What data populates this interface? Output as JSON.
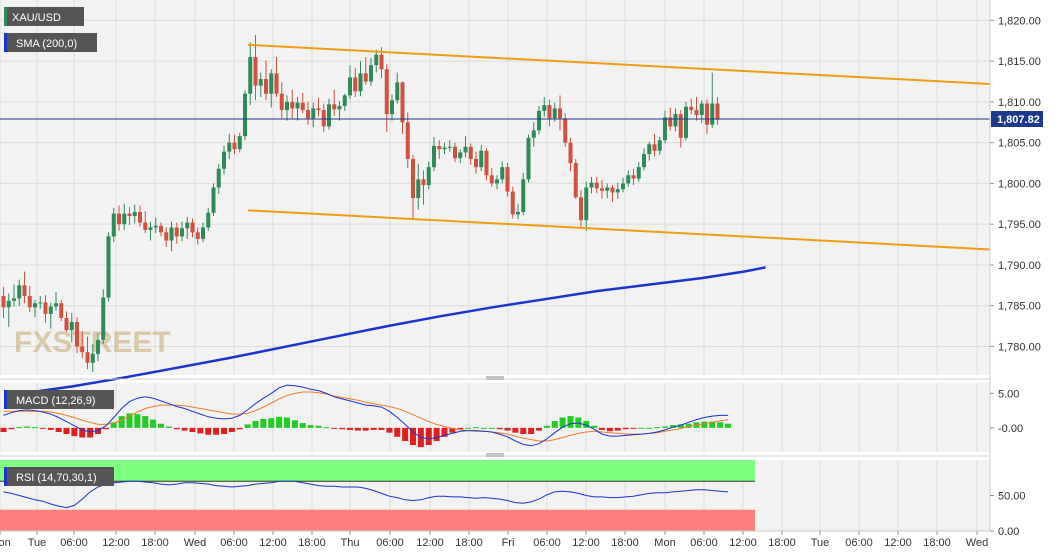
{
  "colors": {
    "panel_bg": "#f2f2f2",
    "grid": "#dcdcdc",
    "bull": "#2e8b57",
    "bear": "#d1503f",
    "channel": "#f39c12",
    "sma": "#1a35c9",
    "macd": "#1a35c9",
    "signal": "#f07b2c",
    "hist_pos": "#22cc22",
    "hist_neg": "#e02020",
    "rsi": "#1a35c9",
    "ob_zone": "#7fff7f",
    "os_zone": "#ff7f7f",
    "tag_bg": "#555555",
    "price_line": "#1b3a8c"
  },
  "price_panel": {
    "symbol_label": "XAU/USD",
    "sma_label": "SMA (200,0)",
    "watermark": "FXSTREET",
    "price_tag": "1,807.82",
    "y_ticks": [
      "1,820.00",
      "1,815.00",
      "1,810.00",
      "1,805.00",
      "1,800.00",
      "1,795.00",
      "1,790.00",
      "1,785.00",
      "1,780.00"
    ]
  },
  "macd_panel": {
    "label": "MACD (12,26,9)",
    "y_ticks": [
      "5.00",
      "-0.00"
    ]
  },
  "rsi_panel": {
    "label": "RSI (14,70,30,1)",
    "y_ticks": [
      "50.00",
      "0.00"
    ]
  },
  "time_axis": {
    "labels": [
      "Mon",
      "Tue",
      "06:00",
      "12:00",
      "18:00",
      "Wed",
      "06:00",
      "12:00",
      "18:00",
      "Thu",
      "06:00",
      "12:00",
      "18:00",
      "Fri",
      "06:00",
      "12:00",
      "18:00",
      "Mon",
      "06:00",
      "12:00",
      "18:00",
      "Tue",
      "06:00",
      "12:00",
      "18:00",
      "Wed"
    ]
  },
  "chart_data": {
    "type": "candlestick",
    "symbol": "XAU/USD",
    "timeframe_note": "hourly candles, Mon through Tue",
    "price_range": [
      1776.5,
      1822.5
    ],
    "last_price": 1807.82,
    "candles": [
      [
        1786.2,
        1787.3,
        1783.5,
        1784.8
      ],
      [
        1784.8,
        1786.5,
        1782.4,
        1785.6
      ],
      [
        1785.6,
        1787.6,
        1784.9,
        1785.9
      ],
      [
        1785.9,
        1788.2,
        1785.0,
        1787.5
      ],
      [
        1787.5,
        1789.2,
        1785.3,
        1786.2
      ],
      [
        1786.2,
        1787.4,
        1784.2,
        1784.8
      ],
      [
        1784.8,
        1785.7,
        1783.6,
        1785.3
      ],
      [
        1785.3,
        1786.2,
        1784.6,
        1785.4
      ],
      [
        1785.4,
        1786.3,
        1782.9,
        1784.0
      ],
      [
        1784.0,
        1785.4,
        1782.2,
        1784.9
      ],
      [
        1784.9,
        1786.7,
        1784.4,
        1785.3
      ],
      [
        1785.3,
        1785.7,
        1783.1,
        1783.5
      ],
      [
        1783.5,
        1784.3,
        1781.8,
        1782.0
      ],
      [
        1782.0,
        1784.1,
        1780.5,
        1783.0
      ],
      [
        1783.0,
        1783.6,
        1779.2,
        1780.0
      ],
      [
        1780.0,
        1781.9,
        1778.6,
        1779.3
      ],
      [
        1779.3,
        1781.2,
        1777.2,
        1778.0
      ],
      [
        1778.0,
        1780.3,
        1776.9,
        1779.1
      ],
      [
        1779.1,
        1781.6,
        1778.2,
        1780.8
      ],
      [
        1780.8,
        1787.0,
        1780.3,
        1786.0
      ],
      [
        1786.0,
        1794.0,
        1785.5,
        1793.5
      ],
      [
        1793.5,
        1797.0,
        1792.8,
        1796.3
      ],
      [
        1796.3,
        1797.3,
        1794.2,
        1795.0
      ],
      [
        1795.0,
        1797.5,
        1794.3,
        1796.3
      ],
      [
        1796.3,
        1797.1,
        1794.9,
        1796.0
      ],
      [
        1796.0,
        1797.4,
        1795.1,
        1796.5
      ],
      [
        1796.5,
        1797.3,
        1794.7,
        1795.2
      ],
      [
        1795.2,
        1796.6,
        1793.9,
        1794.3
      ],
      [
        1794.3,
        1795.3,
        1793.0,
        1794.6
      ],
      [
        1794.6,
        1795.8,
        1793.9,
        1794.8
      ],
      [
        1794.8,
        1795.2,
        1793.5,
        1794.0
      ],
      [
        1794.0,
        1794.6,
        1792.2,
        1793.0
      ],
      [
        1793.0,
        1795.3,
        1791.7,
        1794.6
      ],
      [
        1794.6,
        1795.2,
        1792.6,
        1793.5
      ],
      [
        1793.5,
        1795.3,
        1792.9,
        1794.5
      ],
      [
        1794.5,
        1795.9,
        1793.2,
        1795.2
      ],
      [
        1795.2,
        1795.7,
        1793.4,
        1794.0
      ],
      [
        1794.0,
        1794.6,
        1792.5,
        1793.2
      ],
      [
        1793.2,
        1795.2,
        1792.8,
        1794.6
      ],
      [
        1794.6,
        1797.0,
        1794.2,
        1796.4
      ],
      [
        1796.4,
        1800.0,
        1796.0,
        1799.5
      ],
      [
        1799.5,
        1802.4,
        1798.7,
        1801.8
      ],
      [
        1801.8,
        1804.6,
        1801.1,
        1803.9
      ],
      [
        1803.9,
        1806.1,
        1803.0,
        1805.0
      ],
      [
        1805.0,
        1806.0,
        1803.6,
        1804.2
      ],
      [
        1804.2,
        1806.2,
        1803.8,
        1805.8
      ],
      [
        1805.8,
        1811.4,
        1805.3,
        1811.0
      ],
      [
        1811.0,
        1817.3,
        1809.6,
        1815.5
      ],
      [
        1815.5,
        1818.2,
        1810.2,
        1812.0
      ],
      [
        1812.0,
        1813.6,
        1810.6,
        1812.8
      ],
      [
        1812.8,
        1815.1,
        1810.2,
        1811.0
      ],
      [
        1811.0,
        1814.0,
        1809.3,
        1813.5
      ],
      [
        1813.5,
        1815.5,
        1810.6,
        1811.0
      ],
      [
        1811.0,
        1812.4,
        1808.0,
        1809.0
      ],
      [
        1809.0,
        1810.8,
        1807.7,
        1810.0
      ],
      [
        1810.0,
        1811.5,
        1808.0,
        1809.2
      ],
      [
        1809.2,
        1810.6,
        1807.7,
        1809.9
      ],
      [
        1809.9,
        1811.1,
        1808.6,
        1809.0
      ],
      [
        1809.0,
        1810.0,
        1807.2,
        1808.0
      ],
      [
        1808.0,
        1809.9,
        1806.9,
        1809.2
      ],
      [
        1809.2,
        1810.5,
        1808.2,
        1809.0
      ],
      [
        1809.0,
        1809.8,
        1806.3,
        1807.0
      ],
      [
        1807.0,
        1810.4,
        1806.6,
        1809.7
      ],
      [
        1809.7,
        1811.5,
        1808.3,
        1809.1
      ],
      [
        1809.1,
        1810.1,
        1807.7,
        1809.5
      ],
      [
        1809.5,
        1811.0,
        1808.9,
        1810.8
      ],
      [
        1810.8,
        1814.5,
        1810.4,
        1813.0
      ],
      [
        1813.0,
        1814.2,
        1810.6,
        1811.3
      ],
      [
        1811.3,
        1815.0,
        1810.7,
        1813.5
      ],
      [
        1813.5,
        1815.5,
        1812.1,
        1812.5
      ],
      [
        1812.5,
        1815.4,
        1812.0,
        1814.5
      ],
      [
        1814.5,
        1816.4,
        1813.6,
        1815.8
      ],
      [
        1815.8,
        1816.7,
        1812.9,
        1814.0
      ],
      [
        1814.0,
        1814.6,
        1806.3,
        1808.5
      ],
      [
        1808.5,
        1810.9,
        1807.7,
        1810.2
      ],
      [
        1810.2,
        1813.6,
        1809.8,
        1812.4
      ],
      [
        1812.4,
        1812.5,
        1806.1,
        1807.5
      ],
      [
        1807.5,
        1808.7,
        1801.9,
        1803.0
      ],
      [
        1803.0,
        1803.5,
        1795.7,
        1798.2
      ],
      [
        1798.2,
        1802.4,
        1796.8,
        1800.5
      ],
      [
        1800.5,
        1801.6,
        1797.4,
        1799.8
      ],
      [
        1799.8,
        1802.7,
        1799.3,
        1802.0
      ],
      [
        1802.0,
        1805.7,
        1801.5,
        1804.6
      ],
      [
        1804.6,
        1805.3,
        1803.0,
        1804.2
      ],
      [
        1804.2,
        1805.0,
        1803.6,
        1804.4
      ],
      [
        1804.4,
        1805.3,
        1803.9,
        1804.5
      ],
      [
        1804.5,
        1805.0,
        1802.6,
        1803.1
      ],
      [
        1803.1,
        1804.2,
        1802.5,
        1803.8
      ],
      [
        1803.8,
        1805.8,
        1803.2,
        1804.5
      ],
      [
        1804.5,
        1804.9,
        1802.3,
        1803.0
      ],
      [
        1803.0,
        1803.9,
        1801.2,
        1802.0
      ],
      [
        1802.0,
        1804.7,
        1801.5,
        1804.0
      ],
      [
        1804.0,
        1804.3,
        1800.4,
        1801.0
      ],
      [
        1801.0,
        1801.9,
        1799.6,
        1800.0
      ],
      [
        1800.0,
        1801.0,
        1799.3,
        1800.5
      ],
      [
        1800.5,
        1802.7,
        1800.0,
        1802.0
      ],
      [
        1802.0,
        1802.5,
        1798.4,
        1799.0
      ],
      [
        1799.0,
        1799.6,
        1795.7,
        1796.2
      ],
      [
        1796.2,
        1797.5,
        1795.6,
        1796.5
      ],
      [
        1796.5,
        1801.3,
        1796.1,
        1800.5
      ],
      [
        1800.5,
        1806.0,
        1800.1,
        1805.6
      ],
      [
        1805.6,
        1807.5,
        1804.5,
        1806.5
      ],
      [
        1806.5,
        1809.5,
        1806.0,
        1808.9
      ],
      [
        1808.9,
        1810.6,
        1808.2,
        1809.6
      ],
      [
        1809.6,
        1810.3,
        1807.0,
        1808.0
      ],
      [
        1808.0,
        1809.9,
        1807.6,
        1809.2
      ],
      [
        1809.2,
        1810.8,
        1806.5,
        1808.0
      ],
      [
        1808.0,
        1808.6,
        1804.5,
        1805.0
      ],
      [
        1805.0,
        1805.6,
        1801.5,
        1802.5
      ],
      [
        1802.5,
        1803.0,
        1798.1,
        1798.3
      ],
      [
        1798.3,
        1799.2,
        1794.6,
        1795.5
      ],
      [
        1795.5,
        1800.2,
        1794.2,
        1799.5
      ],
      [
        1799.5,
        1800.8,
        1798.8,
        1800.1
      ],
      [
        1800.1,
        1800.8,
        1798.8,
        1799.4
      ],
      [
        1799.4,
        1800.4,
        1798.1,
        1799.1
      ],
      [
        1799.1,
        1800.0,
        1798.2,
        1799.5
      ],
      [
        1799.5,
        1799.8,
        1797.7,
        1798.9
      ],
      [
        1798.9,
        1800.1,
        1798.1,
        1799.3
      ],
      [
        1799.3,
        1800.7,
        1798.9,
        1800.0
      ],
      [
        1800.0,
        1801.6,
        1799.6,
        1801.0
      ],
      [
        1801.0,
        1801.8,
        1799.8,
        1800.6
      ],
      [
        1800.6,
        1802.6,
        1800.2,
        1802.0
      ],
      [
        1802.0,
        1804.3,
        1801.6,
        1803.6
      ],
      [
        1803.6,
        1805.1,
        1802.8,
        1804.8
      ],
      [
        1804.8,
        1806.1,
        1803.3,
        1804.0
      ],
      [
        1804.0,
        1805.7,
        1803.5,
        1805.3
      ],
      [
        1805.3,
        1808.9,
        1804.9,
        1808.1
      ],
      [
        1808.1,
        1809.3,
        1806.5,
        1807.0
      ],
      [
        1807.0,
        1809.2,
        1806.4,
        1808.5
      ],
      [
        1808.5,
        1809.0,
        1804.4,
        1805.6
      ],
      [
        1805.6,
        1810.0,
        1805.3,
        1809.4
      ],
      [
        1809.4,
        1810.4,
        1808.5,
        1809.0
      ],
      [
        1809.0,
        1810.6,
        1807.7,
        1808.4
      ],
      [
        1808.4,
        1810.2,
        1807.4,
        1809.8
      ],
      [
        1809.8,
        1810.3,
        1806.1,
        1807.2
      ],
      [
        1807.2,
        1813.6,
        1806.8,
        1809.8
      ],
      [
        1809.8,
        1810.6,
        1807.2,
        1807.82
      ]
    ],
    "sma_200": [
      [
        0,
        1774.2
      ],
      [
        10,
        1775.1
      ],
      [
        20,
        1776.2
      ],
      [
        30,
        1777.4
      ],
      [
        40,
        1778.6
      ],
      [
        50,
        1779.9
      ],
      [
        60,
        1781.2
      ],
      [
        70,
        1782.5
      ],
      [
        80,
        1783.7
      ],
      [
        90,
        1784.8
      ],
      [
        100,
        1785.8
      ],
      [
        110,
        1786.8
      ],
      [
        120,
        1787.6
      ],
      [
        130,
        1788.4
      ],
      [
        138,
        1789.2
      ],
      [
        142,
        1789.7
      ]
    ],
    "channel_upper": [
      [
        1817.0,
        1812.2
      ]
    ],
    "channel_lower": [
      [
        1796.7,
        1791.9
      ]
    ],
    "macd": {
      "y_ticks": [
        5.0,
        0.0
      ],
      "range": [
        -3.5,
        6.5
      ],
      "macd_line": [
        1.8,
        2.2,
        2.5,
        2.6,
        2.5,
        2.3,
        2.0,
        1.5,
        0.9,
        0.3,
        -0.3,
        -0.6,
        -0.4,
        0.3,
        1.5,
        2.8,
        3.8,
        4.3,
        4.5,
        4.3,
        3.9,
        3.5,
        3.1,
        2.8,
        2.4,
        2.0,
        1.6,
        1.4,
        1.3,
        1.4,
        1.8,
        2.6,
        3.5,
        4.3,
        5.0,
        5.8,
        6.2,
        6.1,
        5.9,
        5.6,
        5.4,
        5.0,
        4.5,
        4.2,
        3.9,
        3.6,
        3.3,
        3.2,
        3.0,
        2.4,
        1.5,
        0.5,
        -0.6,
        -1.4,
        -1.6,
        -1.4,
        -1.1,
        -0.8,
        -0.5,
        -0.4,
        -0.4,
        -0.5,
        -0.6,
        -0.9,
        -1.3,
        -1.9,
        -2.4,
        -2.6,
        -2.3,
        -1.6,
        -0.7,
        0.1,
        0.6,
        0.7,
        0.4,
        -0.2,
        -0.9,
        -1.2,
        -1.2,
        -1.1,
        -1.0,
        -0.9,
        -0.8,
        -0.6,
        -0.3,
        0.1,
        0.4,
        0.8,
        1.2,
        1.5,
        1.7,
        1.8,
        1.8
      ],
      "signal_line": [
        2.4,
        2.4,
        2.4,
        2.4,
        2.4,
        2.4,
        2.3,
        2.1,
        1.8,
        1.5,
        1.1,
        0.8,
        0.5,
        0.5,
        0.7,
        1.1,
        1.7,
        2.3,
        2.8,
        3.1,
        3.3,
        3.3,
        3.3,
        3.2,
        3.0,
        2.8,
        2.6,
        2.4,
        2.2,
        2.0,
        2.0,
        2.1,
        2.5,
        3.0,
        3.6,
        4.2,
        4.7,
        5.0,
        5.2,
        5.2,
        5.1,
        4.9,
        4.6,
        4.4,
        4.2,
        4.0,
        3.7,
        3.5,
        3.3,
        3.1,
        2.8,
        2.4,
        1.9,
        1.4,
        0.9,
        0.5,
        0.2,
        -0.1,
        -0.3,
        -0.4,
        -0.5,
        -0.5,
        -0.6,
        -0.7,
        -0.9,
        -1.2,
        -1.5,
        -1.7,
        -1.9,
        -1.9,
        -1.7,
        -1.4,
        -1.1,
        -0.8,
        -0.6,
        -0.5,
        -0.6,
        -0.7,
        -0.8,
        -0.9,
        -0.9,
        -0.9,
        -0.8,
        -0.7,
        -0.5,
        -0.3,
        -0.1,
        0.2,
        0.4,
        0.6,
        0.8,
        1.0,
        1.2
      ]
    },
    "rsi": {
      "y_ticks": [
        50.0,
        0.0
      ],
      "range": [
        0,
        100
      ],
      "overbought": 70,
      "oversold": 30,
      "values": [
        55,
        53,
        50,
        47,
        44,
        42,
        38,
        35,
        33,
        36,
        45,
        55,
        62,
        66,
        68,
        69,
        70,
        70,
        69,
        68,
        66,
        65,
        66,
        68,
        68,
        67,
        66,
        64,
        63,
        62,
        63,
        64,
        66,
        67,
        68,
        70,
        70,
        70,
        68,
        66,
        64,
        63,
        63,
        62,
        62,
        62,
        60,
        57,
        53,
        49,
        47,
        44,
        43,
        44,
        47,
        49,
        49,
        48,
        48,
        47,
        46,
        47,
        46,
        45,
        43,
        40,
        39,
        41,
        45,
        51,
        55,
        56,
        55,
        53,
        50,
        48,
        48,
        47,
        47,
        48,
        49,
        51,
        53,
        54,
        54,
        55,
        56,
        57,
        58,
        58,
        57,
        56,
        55
      ]
    }
  }
}
